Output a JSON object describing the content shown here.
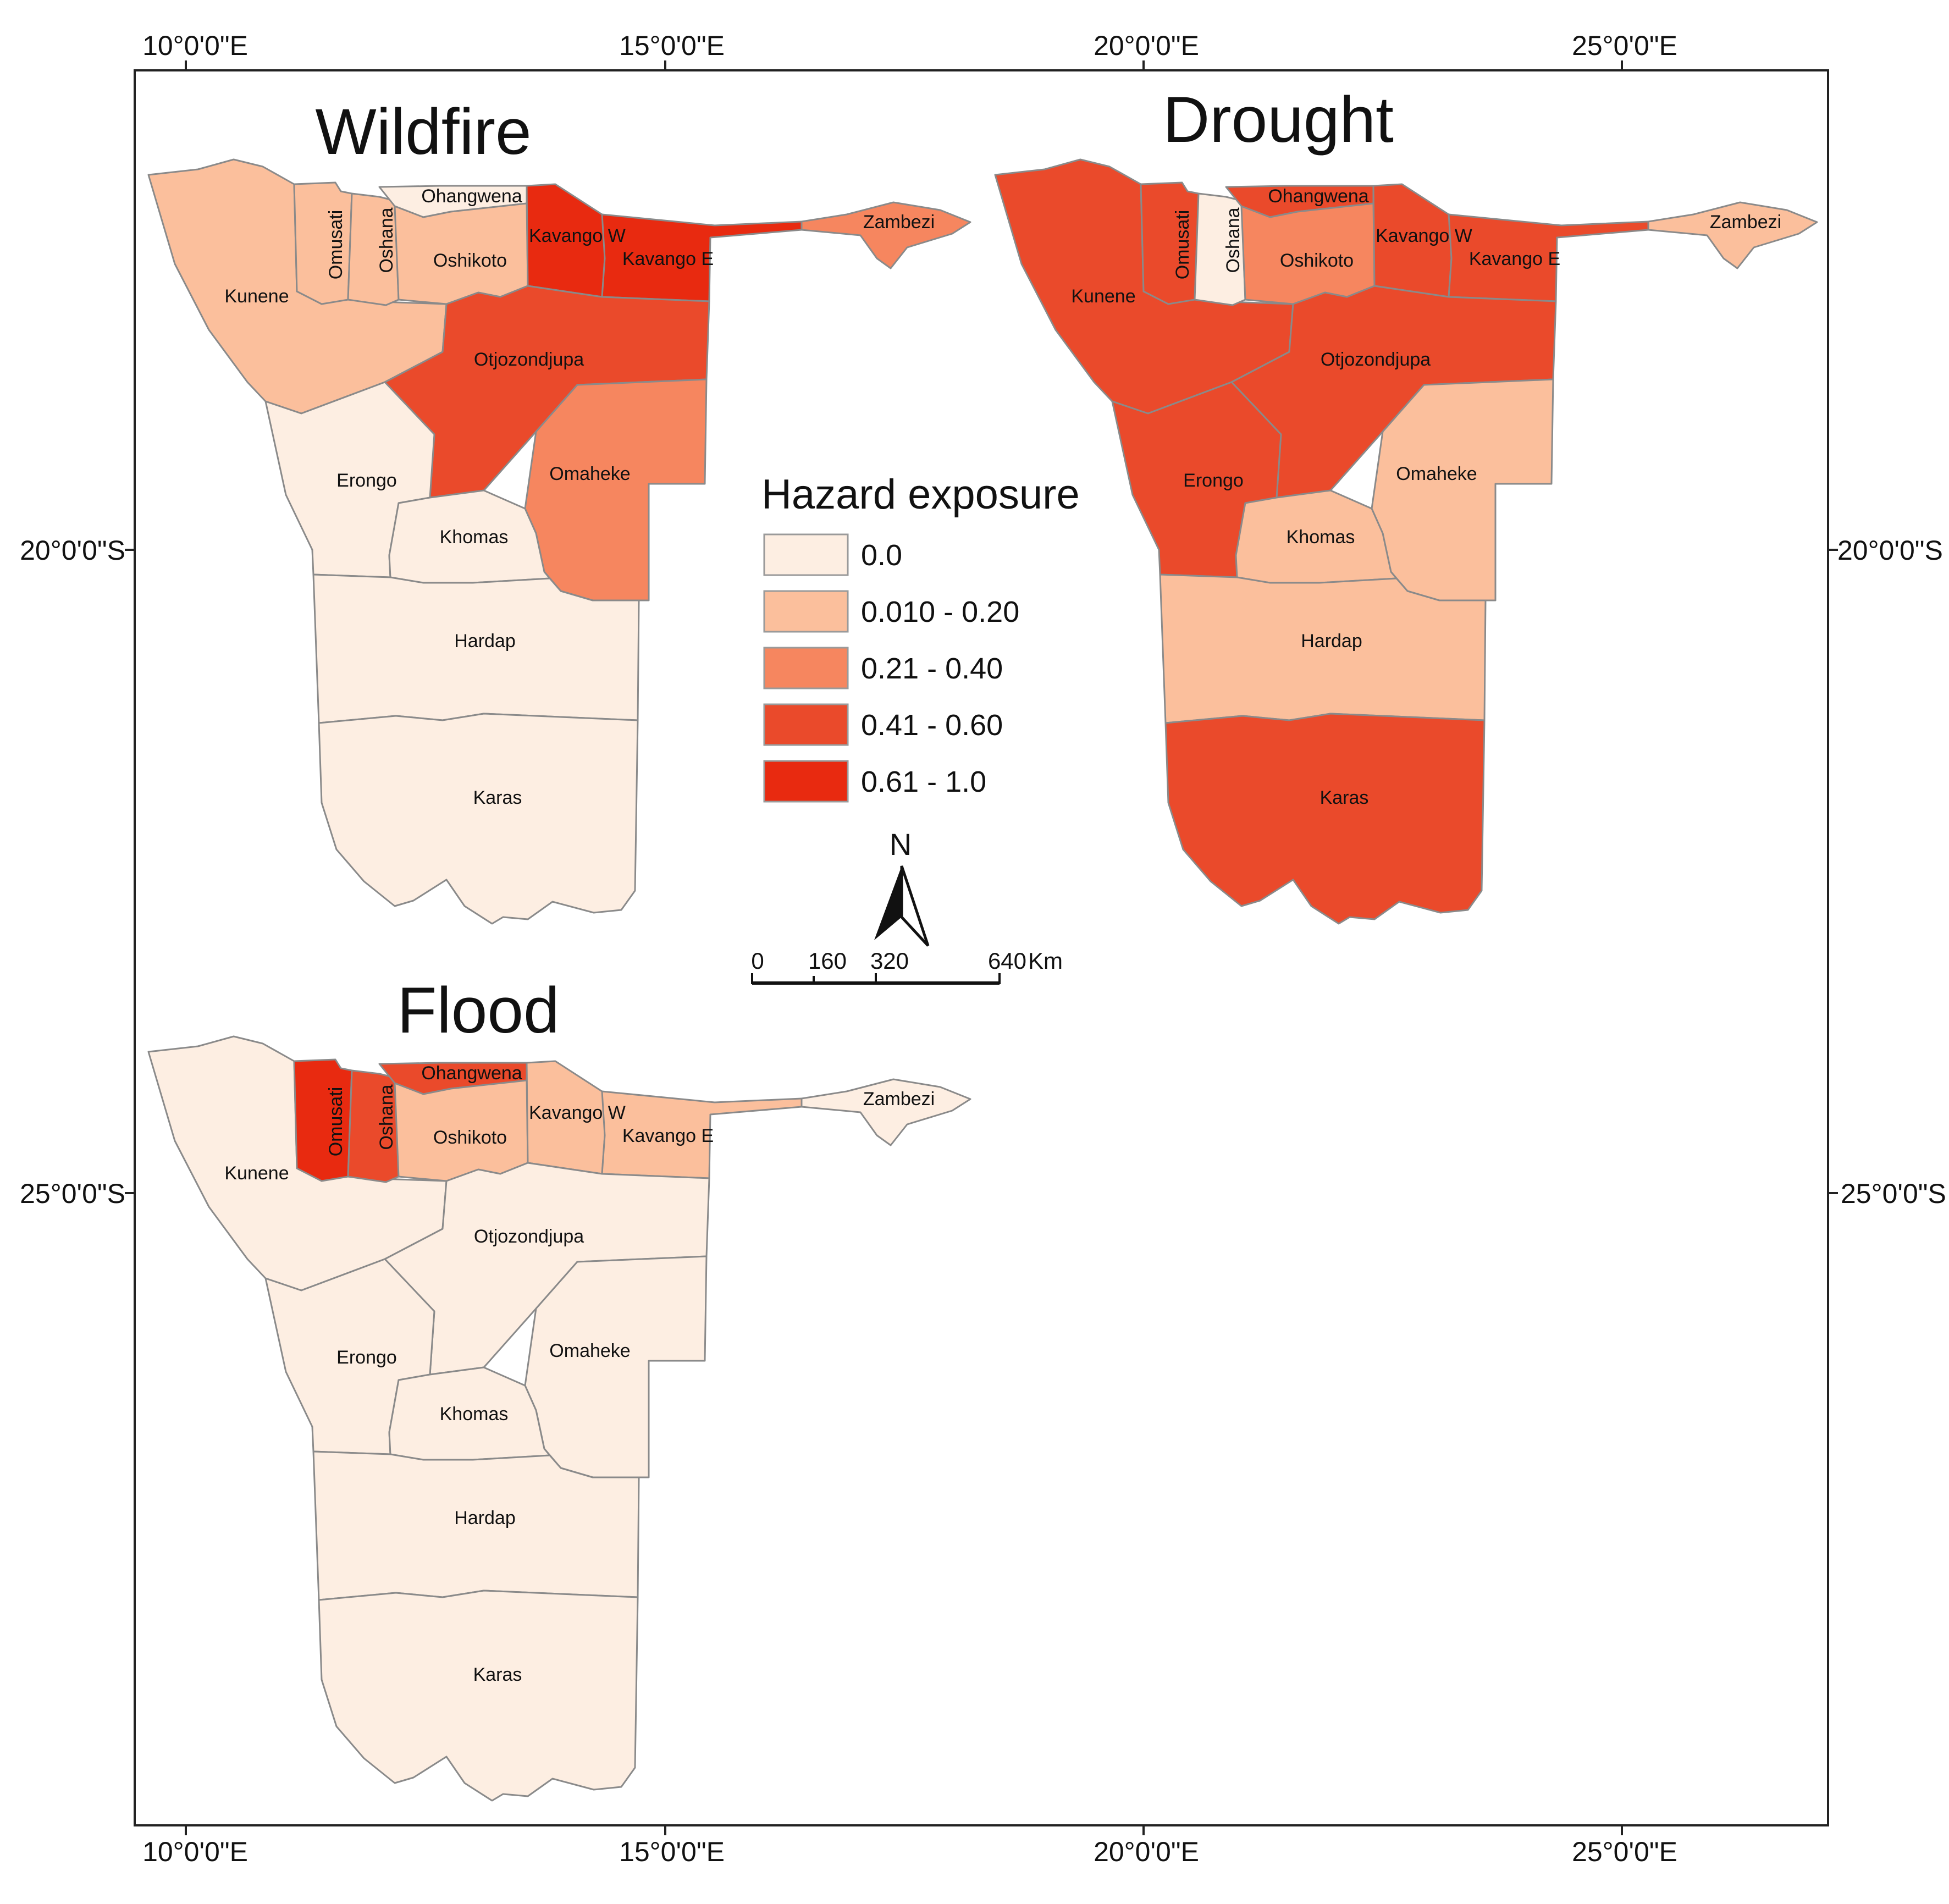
{
  "map": {
    "coordinates": {
      "top": [
        "10°0'0\"E",
        "15°0'0\"E",
        "20°0'0\"E",
        "25°0'0\"E"
      ],
      "bottom": [
        "10°0'0\"E",
        "15°0'0\"E",
        "20°0'0\"E",
        "25°0'0\"E"
      ],
      "left": [
        "20°0'0\"S",
        "25°0'0\"S"
      ],
      "right": [
        "20°0'0\"S",
        "25°0'0\"S"
      ]
    },
    "legend": {
      "title": "Hazard exposure",
      "classes": [
        {
          "label": "0.0",
          "color": "#fdeee2"
        },
        {
          "label": "0.010 - 0.20",
          "color": "#fbbf9c"
        },
        {
          "label": "0.21 - 0.40",
          "color": "#f6865f"
        },
        {
          "label": "0.41 - 0.60",
          "color": "#ea4a2b"
        },
        {
          "label": "0.61 - 1.0",
          "color": "#e82a10"
        }
      ]
    },
    "north_arrow": {
      "label": "N"
    },
    "scale_bar": {
      "ticks": [
        "0",
        "160",
        "320",
        "640"
      ],
      "unit": "Km"
    },
    "panels": [
      {
        "title": "Wildfire",
        "classes": {
          "Kunene": 1,
          "Omusati": 1,
          "Oshana": 1,
          "Ohangwena": 0,
          "Oshikoto": 1,
          "Kavango W": 4,
          "Kavango E": 4,
          "Zambezi": 2,
          "Otjozondjupa": 3,
          "Erongo": 0,
          "Omaheke": 2,
          "Khomas": 0,
          "Hardap": 0,
          "Karas": 0
        }
      },
      {
        "title": "Drought",
        "classes": {
          "Kunene": 3,
          "Omusati": 3,
          "Oshana": 0,
          "Ohangwena": 3,
          "Oshikoto": 2,
          "Kavango W": 3,
          "Kavango E": 3,
          "Zambezi": 1,
          "Otjozondjupa": 3,
          "Erongo": 3,
          "Omaheke": 1,
          "Khomas": 1,
          "Hardap": 1,
          "Karas": 3
        }
      },
      {
        "title": "Flood",
        "classes": {
          "Kunene": 0,
          "Omusati": 4,
          "Oshana": 3,
          "Ohangwena": 3,
          "Oshikoto": 1,
          "Kavango W": 1,
          "Kavango E": 1,
          "Zambezi": 0,
          "Otjozondjupa": 0,
          "Erongo": 0,
          "Omaheke": 0,
          "Khomas": 0,
          "Hardap": 0,
          "Karas": 0
        }
      }
    ],
    "region_names": {
      "Kunene": "Kunene",
      "Omusati": "Omusati",
      "Oshana": "Oshana",
      "Ohangwena": "Ohangwena",
      "Oshikoto": "Oshikoto",
      "Kavango W": "Kavango W",
      "Kavango E": "Kavango E",
      "Zambezi": "Zambezi",
      "Otjozondjupa": "Otjozondjupa",
      "Erongo": "Erongo",
      "Omaheke": "Omaheke",
      "Khomas": "Khomas",
      "Hardap": "Hardap",
      "Karas": "Karas"
    }
  }
}
